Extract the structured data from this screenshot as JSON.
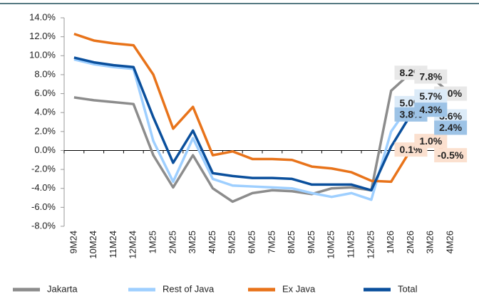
{
  "chart_data": {
    "type": "line",
    "categories": [
      "9M24",
      "10M24",
      "11M24",
      "12M24",
      "1M25",
      "2M25",
      "3M25",
      "4M25",
      "5M25",
      "6M25",
      "7M25",
      "8M25",
      "9M25",
      "10M25",
      "11M25",
      "12M25",
      "1M26",
      "2M26",
      "3M26",
      "4M26"
    ],
    "series": [
      {
        "name": "Jakarta",
        "color": "#8c8c8c",
        "label_color": "#e8e8e8",
        "values": [
          5.6,
          5.3,
          5.1,
          4.9,
          -0.5,
          -3.9,
          -0.5,
          -4.0,
          -5.4,
          -4.5,
          -4.2,
          -4.3,
          -4.6,
          -4.0,
          -3.9,
          -4.2,
          6.3,
          8.2,
          7.8,
          6.0
        ],
        "value_labels": [
          null,
          null,
          null,
          null,
          null,
          null,
          null,
          null,
          null,
          null,
          null,
          null,
          null,
          null,
          null,
          null,
          null,
          "8.2%",
          "7.8%",
          "6.0%"
        ]
      },
      {
        "name": "Rest of Java",
        "color": "#9ecfff",
        "label_color": "#dcebf8",
        "values": [
          9.6,
          9.1,
          8.8,
          8.6,
          1.0,
          -3.3,
          1.3,
          -3.0,
          -3.7,
          -3.8,
          -3.9,
          -4.0,
          -4.5,
          -4.9,
          -4.5,
          -5.2,
          2.0,
          5.0,
          5.7,
          3.6
        ],
        "value_labels": [
          null,
          null,
          null,
          null,
          null,
          null,
          null,
          null,
          null,
          null,
          null,
          null,
          null,
          null,
          null,
          null,
          null,
          "5.0%",
          "5.7%",
          "3.6%"
        ]
      },
      {
        "name": "Ex Java",
        "color": "#e8731a",
        "label_color": "#fbe0cf",
        "values": [
          12.3,
          11.6,
          11.3,
          11.1,
          8.0,
          2.3,
          4.6,
          -0.5,
          -0.1,
          -0.9,
          -0.9,
          -1.0,
          -1.7,
          -1.9,
          -2.3,
          -3.2,
          -3.3,
          0.1,
          1.0,
          -0.5
        ],
        "value_labels": [
          null,
          null,
          null,
          null,
          null,
          null,
          null,
          null,
          null,
          null,
          null,
          null,
          null,
          null,
          null,
          null,
          null,
          "0.1%",
          "1.0%",
          "-0.5%"
        ]
      },
      {
        "name": "Total",
        "color": "#0a4f9c",
        "label_color": "#9dc3e6",
        "values": [
          9.8,
          9.3,
          9.0,
          8.8,
          3.5,
          -1.3,
          2.1,
          -2.4,
          -2.7,
          -2.9,
          -2.9,
          -3.0,
          -3.6,
          -3.6,
          -3.6,
          -4.2,
          0.4,
          3.8,
          4.3,
          2.4
        ],
        "value_labels": [
          null,
          null,
          null,
          null,
          null,
          null,
          null,
          null,
          null,
          null,
          null,
          null,
          null,
          null,
          null,
          null,
          null,
          "3.8%",
          "4.3%",
          "2.4%"
        ]
      }
    ],
    "ylim": [
      -8,
      14
    ],
    "yticks": [
      {
        "value": -8,
        "label": "-8.0%"
      },
      {
        "value": -6,
        "label": "-6.0%"
      },
      {
        "value": -4,
        "label": "-4.0%"
      },
      {
        "value": -2,
        "label": "-2.0%"
      },
      {
        "value": 0,
        "label": "0.0%"
      },
      {
        "value": 2,
        "label": "2.0%"
      },
      {
        "value": 4,
        "label": "4.0%"
      },
      {
        "value": 6,
        "label": "6.0%"
      },
      {
        "value": 8,
        "label": "8.0%"
      },
      {
        "value": 10,
        "label": "10.0%"
      },
      {
        "value": 12,
        "label": "12.0%"
      },
      {
        "value": 14,
        "label": "14.0%"
      }
    ],
    "grid": false,
    "legend": "bottom"
  }
}
